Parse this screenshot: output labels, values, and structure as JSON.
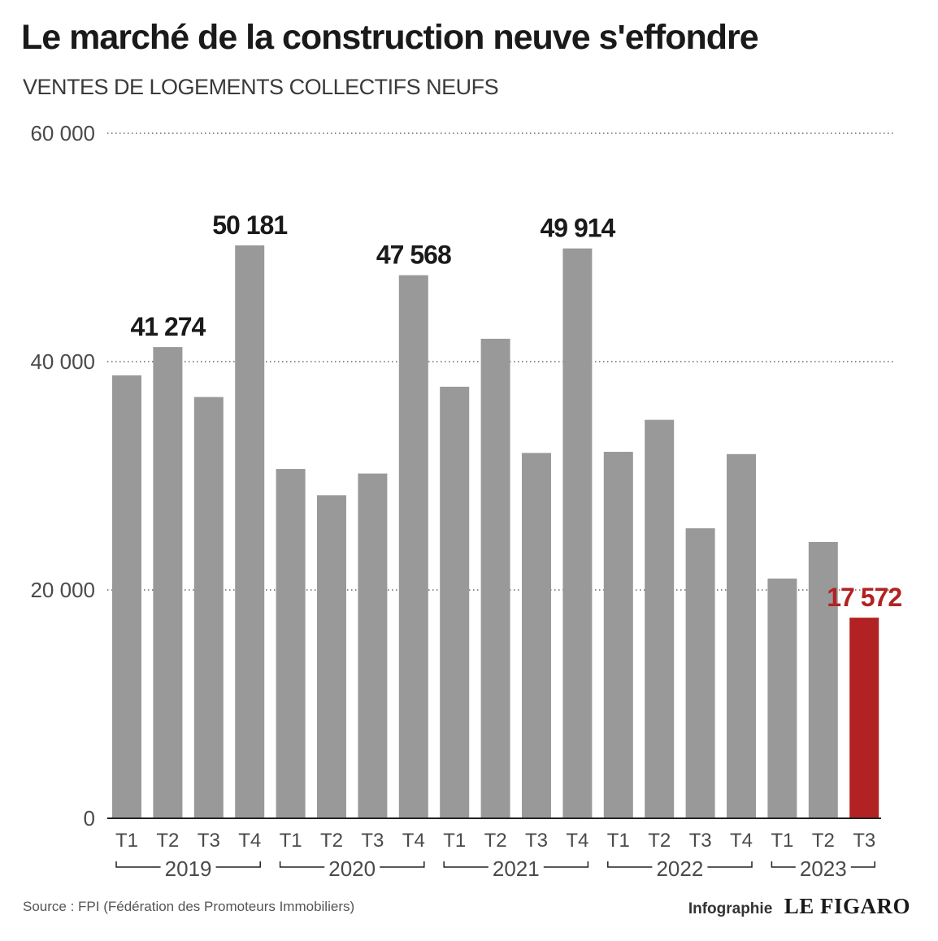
{
  "header": {
    "title": "Le marché de la construction neuve s'effondre",
    "subtitle": "VENTES DE LOGEMENTS COLLECTIFS NEUFS"
  },
  "chart_data": {
    "type": "bar",
    "title": "Le marché de la construction neuve s'effondre",
    "subtitle": "VENTES DE LOGEMENTS COLLECTIFS NEUFS",
    "categories": [
      "T1",
      "T2",
      "T3",
      "T4",
      "T1",
      "T2",
      "T3",
      "T4",
      "T1",
      "T2",
      "T3",
      "T4",
      "T1",
      "T2",
      "T3",
      "T4",
      "T1",
      "T2",
      "T3"
    ],
    "years": [
      {
        "label": "2019",
        "count": 4
      },
      {
        "label": "2020",
        "count": 4
      },
      {
        "label": "2021",
        "count": 4
      },
      {
        "label": "2022",
        "count": 4
      },
      {
        "label": "2023",
        "count": 3
      }
    ],
    "values": [
      38800,
      41274,
      36900,
      50181,
      30600,
      28300,
      30200,
      47568,
      37800,
      42000,
      32000,
      49914,
      32100,
      34900,
      25400,
      31900,
      21000,
      24200,
      17572
    ],
    "data_labels": {
      "1": "41 274",
      "3": "50 181",
      "7": "47 568",
      "11": "49 914",
      "18": "17 572"
    },
    "highlight_index": 18,
    "ylim": [
      0,
      60000
    ],
    "yticks": [
      0,
      20000,
      40000,
      60000
    ],
    "ytick_labels": [
      "0",
      "20 000",
      "40 000",
      "60 000"
    ],
    "grid": "dotted",
    "colors": {
      "bar": "#999999",
      "highlight": "#b22222",
      "label": "#1a1a1a",
      "highlight_label": "#b22222",
      "axis": "#222222",
      "grid": "#666666",
      "tick_text": "#4a4a4a"
    }
  },
  "footer": {
    "source": "Source : FPI (Fédération des Promoteurs Immobiliers)",
    "brand_prefix": "Infographie",
    "brand_logo": "LE FIGARO"
  }
}
